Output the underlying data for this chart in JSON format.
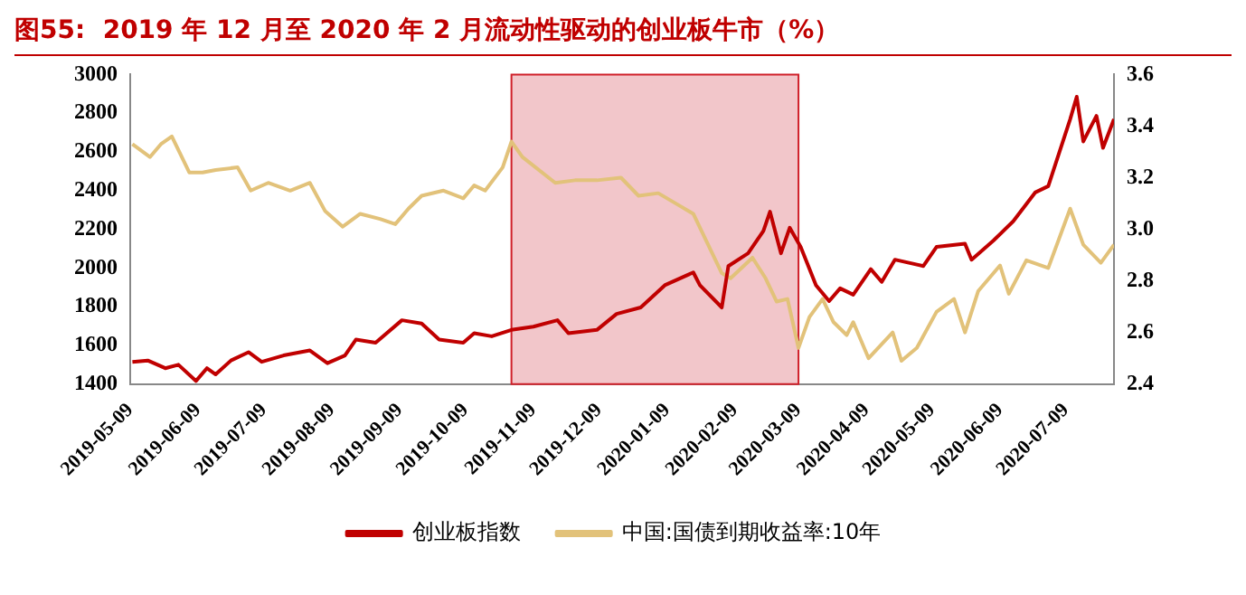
{
  "chart_data": {
    "type": "line",
    "title": "图55:  2019 年 12 月至 2020 年 2 月流动性驱动的创业板牛市（%）",
    "xlim": [
      "2019-05-09",
      "2020-07-31"
    ],
    "xticks": [
      "2019-05-09",
      "2019-06-09",
      "2019-07-09",
      "2019-08-09",
      "2019-09-09",
      "2019-10-09",
      "2019-11-09",
      "2019-12-09",
      "2020-01-09",
      "2020-02-09",
      "2020-03-09",
      "2020-04-09",
      "2020-05-09",
      "2020-06-09",
      "2020-07-09"
    ],
    "ylim": [
      1400,
      3000
    ],
    "yticks": [
      1400,
      1600,
      1800,
      2000,
      2200,
      2400,
      2600,
      2800,
      3000
    ],
    "y2lim": [
      2.4,
      3.6
    ],
    "y2ticks": [
      2.4,
      2.6,
      2.8,
      {
        "value": 3,
        "label": "3.0"
      },
      3.2,
      3.4,
      3.6
    ],
    "grid": false,
    "legend": "bottom",
    "marker": "none",
    "line_style": "solid",
    "bands": [
      {
        "axis": "x",
        "from": "2019-10-30",
        "to": "2020-03-09",
        "color": "#f2c6ca"
      }
    ],
    "series": [
      {
        "name": "创业板指数",
        "color": "#c00000",
        "x": [
          "2019-05-10",
          "2019-05-17",
          "2019-05-25",
          "2019-05-31",
          "2019-06-08",
          "2019-06-13",
          "2019-06-17",
          "2019-06-24",
          "2019-07-02",
          "2019-07-08",
          "2019-07-18",
          "2019-07-30",
          "2019-08-07",
          "2019-08-15",
          "2019-08-20",
          "2019-08-29",
          "2019-09-10",
          "2019-09-19",
          "2019-09-27",
          "2019-10-08",
          "2019-10-13",
          "2019-10-21",
          "2019-10-30",
          "2019-11-09",
          "2019-11-20",
          "2019-11-25",
          "2019-12-08",
          "2019-12-17",
          "2019-12-28",
          "2020-01-08",
          "2020-01-21",
          "2020-01-24",
          "2020-02-03",
          "2020-02-06",
          "2020-02-15",
          "2020-02-22",
          "2020-02-25",
          "2020-03-01",
          "2020-03-05",
          "2020-03-10",
          "2020-03-17",
          "2020-03-23",
          "2020-03-28",
          "2020-04-03",
          "2020-04-11",
          "2020-04-16",
          "2020-04-22",
          "2020-05-05",
          "2020-05-11",
          "2020-05-24",
          "2020-05-27",
          "2020-06-06",
          "2020-06-15",
          "2020-06-25",
          "2020-07-01",
          "2020-07-11",
          "2020-07-14",
          "2020-07-17",
          "2020-07-23",
          "2020-07-26",
          "2020-07-31"
        ],
        "values": [
          1515,
          1522,
          1482,
          1500,
          1416,
          1482,
          1450,
          1522,
          1565,
          1515,
          1548,
          1574,
          1508,
          1548,
          1630,
          1614,
          1730,
          1713,
          1630,
          1614,
          1663,
          1647,
          1680,
          1697,
          1730,
          1663,
          1680,
          1763,
          1796,
          1911,
          1977,
          1911,
          1796,
          2010,
          2076,
          2192,
          2291,
          2076,
          2208,
          2109,
          1911,
          1829,
          1895,
          1862,
          1994,
          1928,
          2043,
          2010,
          2109,
          2126,
          2043,
          2142,
          2241,
          2390,
          2423,
          2769,
          2885,
          2654,
          2786,
          2621,
          2769
        ]
      },
      {
        "name": "中国:国债到期收益率:10年",
        "color": "#e2c27a",
        "axis": "y2",
        "x": [
          "2019-05-10",
          "2019-05-18",
          "2019-05-23",
          "2019-05-28",
          "2019-06-05",
          "2019-06-11",
          "2019-06-17",
          "2019-06-27",
          "2019-07-03",
          "2019-07-11",
          "2019-07-21",
          "2019-07-30",
          "2019-08-06",
          "2019-08-14",
          "2019-08-22",
          "2019-08-31",
          "2019-09-07",
          "2019-09-13",
          "2019-09-19",
          "2019-09-29",
          "2019-10-08",
          "2019-10-13",
          "2019-10-18",
          "2019-10-26",
          "2019-10-30",
          "2019-11-04",
          "2019-11-19",
          "2019-11-28",
          "2019-12-08",
          "2019-12-19",
          "2019-12-27",
          "2020-01-05",
          "2020-01-15",
          "2020-01-21",
          "2020-02-03",
          "2020-02-07",
          "2020-02-17",
          "2020-02-23",
          "2020-02-28",
          "2020-03-04",
          "2020-03-09",
          "2020-03-14",
          "2020-03-20",
          "2020-03-25",
          "2020-03-31",
          "2020-04-03",
          "2020-04-10",
          "2020-04-21",
          "2020-04-25",
          "2020-05-02",
          "2020-05-11",
          "2020-05-19",
          "2020-05-24",
          "2020-05-30",
          "2020-06-09",
          "2020-06-13",
          "2020-06-21",
          "2020-07-01",
          "2020-07-11",
          "2020-07-17",
          "2020-07-25",
          "2020-07-31"
        ],
        "values": [
          3.33,
          3.28,
          3.33,
          3.36,
          3.22,
          3.22,
          3.23,
          3.24,
          3.15,
          3.18,
          3.15,
          3.18,
          3.07,
          3.01,
          3.06,
          3.04,
          3.02,
          3.08,
          3.13,
          3.15,
          3.12,
          3.17,
          3.15,
          3.24,
          3.34,
          3.28,
          3.18,
          3.19,
          3.19,
          3.2,
          3.13,
          3.14,
          3.09,
          3.06,
          2.83,
          2.81,
          2.89,
          2.81,
          2.72,
          2.73,
          2.54,
          2.66,
          2.73,
          2.64,
          2.59,
          2.64,
          2.5,
          2.6,
          2.49,
          2.54,
          2.68,
          2.73,
          2.6,
          2.76,
          2.86,
          2.75,
          2.88,
          2.85,
          3.08,
          2.94,
          2.87,
          2.94
        ]
      }
    ]
  }
}
